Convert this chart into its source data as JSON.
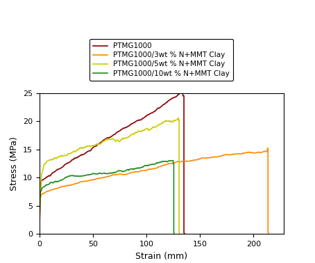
{
  "xlabel": "Strain (mm)",
  "ylabel": "Stress (MPa)",
  "xlim": [
    0,
    228
  ],
  "ylim": [
    0,
    25
  ],
  "xticks": [
    0,
    50,
    100,
    150,
    200
  ],
  "yticks": [
    0,
    5,
    10,
    15,
    20,
    25
  ],
  "legend_labels": [
    "PTMG1000",
    "PTMG1000/3wt % N+MMT Clay",
    "PTMG1000/5wt % N+MMT Clay",
    "PTMG1000/10wt % N+MMT Clay"
  ],
  "colors": {
    "dark_red": "#8B0000",
    "orange": "#FF8800",
    "yellow": "#CCCC00",
    "green": "#228B22"
  },
  "figsize": [
    4.54,
    3.78
  ],
  "dpi": 100
}
